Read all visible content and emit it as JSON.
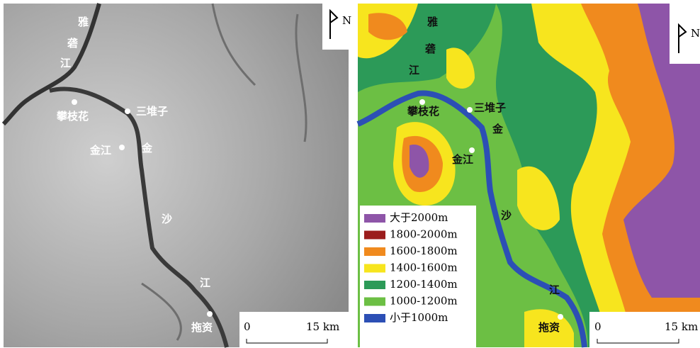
{
  "north_arrow": "N",
  "scale_bar": {
    "start": "0",
    "end": "15 km"
  },
  "river_labels": [
    "雅",
    "砻",
    "江",
    "金",
    "沙",
    "江"
  ],
  "place_labels": [
    "攀枝花",
    "三堆子",
    "金江",
    "拖资"
  ],
  "legend": [
    {
      "label": "大于2000m",
      "color": "#8e55a8"
    },
    {
      "label": "1800-2000m",
      "color": "#9b1c1c"
    },
    {
      "label": "1600-1800m",
      "color": "#f08a1e"
    },
    {
      "label": "1400-1600m",
      "color": "#f7e51e"
    },
    {
      "label": "1200-1400m",
      "color": "#2c9a58"
    },
    {
      "label": "1000-1200m",
      "color": "#6cbf44"
    },
    {
      "label": "小于1000m",
      "color": "#2c4fb5"
    }
  ]
}
